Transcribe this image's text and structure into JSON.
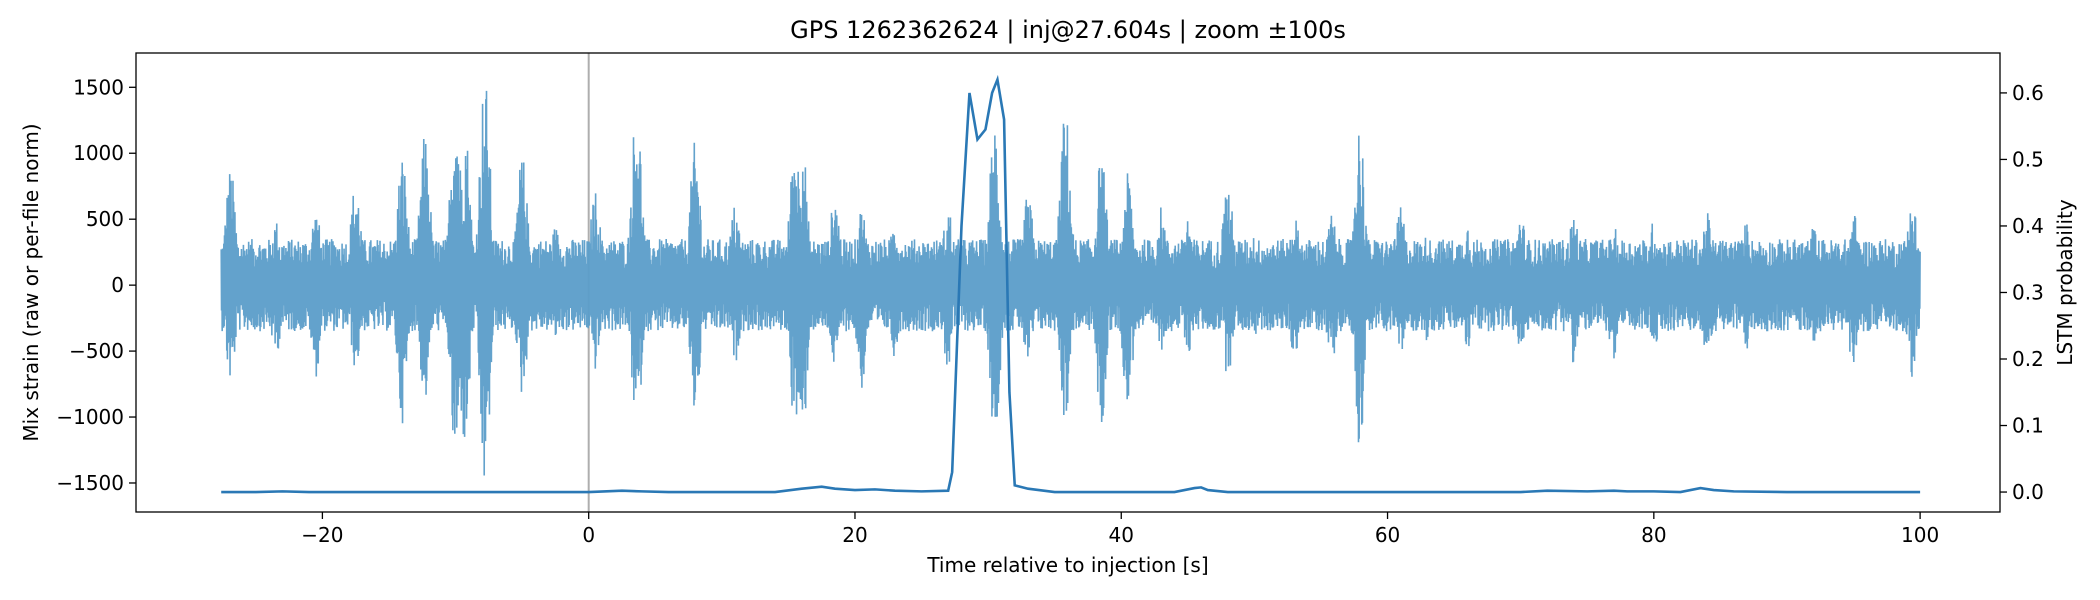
{
  "chart_data": {
    "type": "line",
    "title": "GPS 1262362624 | inj@27.604s | zoom ±100s",
    "xlabel": "Time relative to injection [s]",
    "ylabel_left": "Mix strain (raw or per-file norm)",
    "ylabel_right": "LSTM probability",
    "xlim": [
      -34,
      106
    ],
    "ylim_left": [
      -1720,
      1760
    ],
    "ylim_right": [
      -0.03,
      0.66
    ],
    "x_ticks": [
      -20,
      0,
      20,
      40,
      60,
      80,
      100
    ],
    "x_tick_labels": [
      "−20",
      "0",
      "20",
      "40",
      "60",
      "80",
      "100"
    ],
    "y_left_ticks": [
      -1500,
      -1000,
      -500,
      0,
      500,
      1000,
      1500
    ],
    "y_left_tick_labels": [
      "−1500",
      "−1000",
      "−500",
      "0",
      "500",
      "1000",
      "1500"
    ],
    "y_right_ticks": [
      0.0,
      0.1,
      0.2,
      0.3,
      0.4,
      0.5,
      0.6
    ],
    "y_right_tick_labels": [
      "0.0",
      "0.1",
      "0.2",
      "0.3",
      "0.4",
      "0.5",
      "0.6"
    ],
    "injection_marker_x": 0,
    "grid": false,
    "series": [
      {
        "kind": "strain",
        "axis": "left",
        "color": "#5b9dc9",
        "x_range": [
          -27.6,
          100
        ],
        "baseline_amplitude": 350,
        "bursts": [
          {
            "x": -26.9,
            "peak": 900,
            "trough": -750
          },
          {
            "x": -23.5,
            "peak": 500,
            "trough": -550
          },
          {
            "x": -20.5,
            "peak": 580,
            "trough": -700
          },
          {
            "x": -17.5,
            "peak": 800,
            "trough": -650
          },
          {
            "x": -14,
            "peak": 1000,
            "trough": -1050
          },
          {
            "x": -12.3,
            "peak": 1150,
            "trough": -900
          },
          {
            "x": -10,
            "peak": 1450,
            "trough": -1400
          },
          {
            "x": -9.3,
            "peak": 1250,
            "trough": -1250
          },
          {
            "x": -7.8,
            "peak": 1600,
            "trough": -1560
          },
          {
            "x": -5,
            "peak": 1000,
            "trough": -850
          },
          {
            "x": -2.5,
            "peak": 450,
            "trough": -420
          },
          {
            "x": 0.5,
            "peak": 720,
            "trough": -650
          },
          {
            "x": 3.6,
            "peak": 1400,
            "trough": -1100
          },
          {
            "x": 8,
            "peak": 1100,
            "trough": -1000
          },
          {
            "x": 11,
            "peak": 620,
            "trough": -600
          },
          {
            "x": 15.5,
            "peak": 1150,
            "trough": -1100
          },
          {
            "x": 16,
            "peak": 1200,
            "trough": -1300
          },
          {
            "x": 18.5,
            "peak": 700,
            "trough": -650
          },
          {
            "x": 20.5,
            "peak": 600,
            "trough": -800
          },
          {
            "x": 23,
            "peak": 500,
            "trough": -550
          },
          {
            "x": 27,
            "peak": 600,
            "trough": -650
          },
          {
            "x": 30.5,
            "peak": 1280,
            "trough": -1180
          },
          {
            "x": 33,
            "peak": 700,
            "trough": -650
          },
          {
            "x": 35.8,
            "peak": 1350,
            "trough": -1050
          },
          {
            "x": 38.5,
            "peak": 1000,
            "trough": -1100
          },
          {
            "x": 40.5,
            "peak": 850,
            "trough": -950
          },
          {
            "x": 43,
            "peak": 600,
            "trough": -500
          },
          {
            "x": 45,
            "peak": 550,
            "trough": -550
          },
          {
            "x": 48,
            "peak": 800,
            "trough": -700
          },
          {
            "x": 50,
            "peak": 400,
            "trough": -400
          },
          {
            "x": 53,
            "peak": 550,
            "trough": -550
          },
          {
            "x": 55.8,
            "peak": 550,
            "trough": -600
          },
          {
            "x": 57.9,
            "peak": 1250,
            "trough": -1220
          },
          {
            "x": 61,
            "peak": 600,
            "trough": -550
          },
          {
            "x": 63,
            "peak": 400,
            "trough": -450
          },
          {
            "x": 66,
            "peak": 500,
            "trough": -500
          },
          {
            "x": 70,
            "peak": 550,
            "trough": -550
          },
          {
            "x": 74,
            "peak": 550,
            "trough": -600
          },
          {
            "x": 77,
            "peak": 450,
            "trough": -600
          },
          {
            "x": 80,
            "peak": 500,
            "trough": -550
          },
          {
            "x": 84,
            "peak": 550,
            "trough": -600
          },
          {
            "x": 87,
            "peak": 500,
            "trough": -500
          },
          {
            "x": 89,
            "peak": 350,
            "trough": -350
          },
          {
            "x": 92,
            "peak": 450,
            "trough": -450
          },
          {
            "x": 95,
            "peak": 560,
            "trough": -650
          },
          {
            "x": 99.4,
            "peak": 680,
            "trough": -720
          }
        ]
      },
      {
        "kind": "probability",
        "axis": "right",
        "color": "#2a78b5",
        "x": [
          -27.6,
          -25,
          -23,
          -21,
          -10,
          0,
          2.5,
          4,
          6,
          14,
          16,
          17.5,
          18.5,
          20,
          21.5,
          23,
          25,
          27,
          27.3,
          28,
          28.6,
          29.2,
          29.8,
          30.3,
          30.7,
          31.2,
          31.6,
          32,
          33,
          35,
          44,
          45.5,
          46,
          46.5,
          48,
          55,
          70,
          72,
          75,
          77,
          78,
          80,
          82,
          83.5,
          84.5,
          86,
          90,
          100
        ],
        "values": [
          0.0,
          0.0,
          0.001,
          0.0,
          0.0,
          0.0,
          0.002,
          0.001,
          0.0,
          0.0,
          0.005,
          0.008,
          0.005,
          0.003,
          0.004,
          0.002,
          0.001,
          0.002,
          0.03,
          0.4,
          0.6,
          0.53,
          0.545,
          0.6,
          0.62,
          0.56,
          0.15,
          0.01,
          0.005,
          0.0,
          0.0,
          0.006,
          0.007,
          0.003,
          0.0,
          0.0,
          0.0,
          0.002,
          0.001,
          0.002,
          0.001,
          0.001,
          0.0,
          0.006,
          0.003,
          0.001,
          0.0,
          0.0
        ]
      }
    ]
  }
}
